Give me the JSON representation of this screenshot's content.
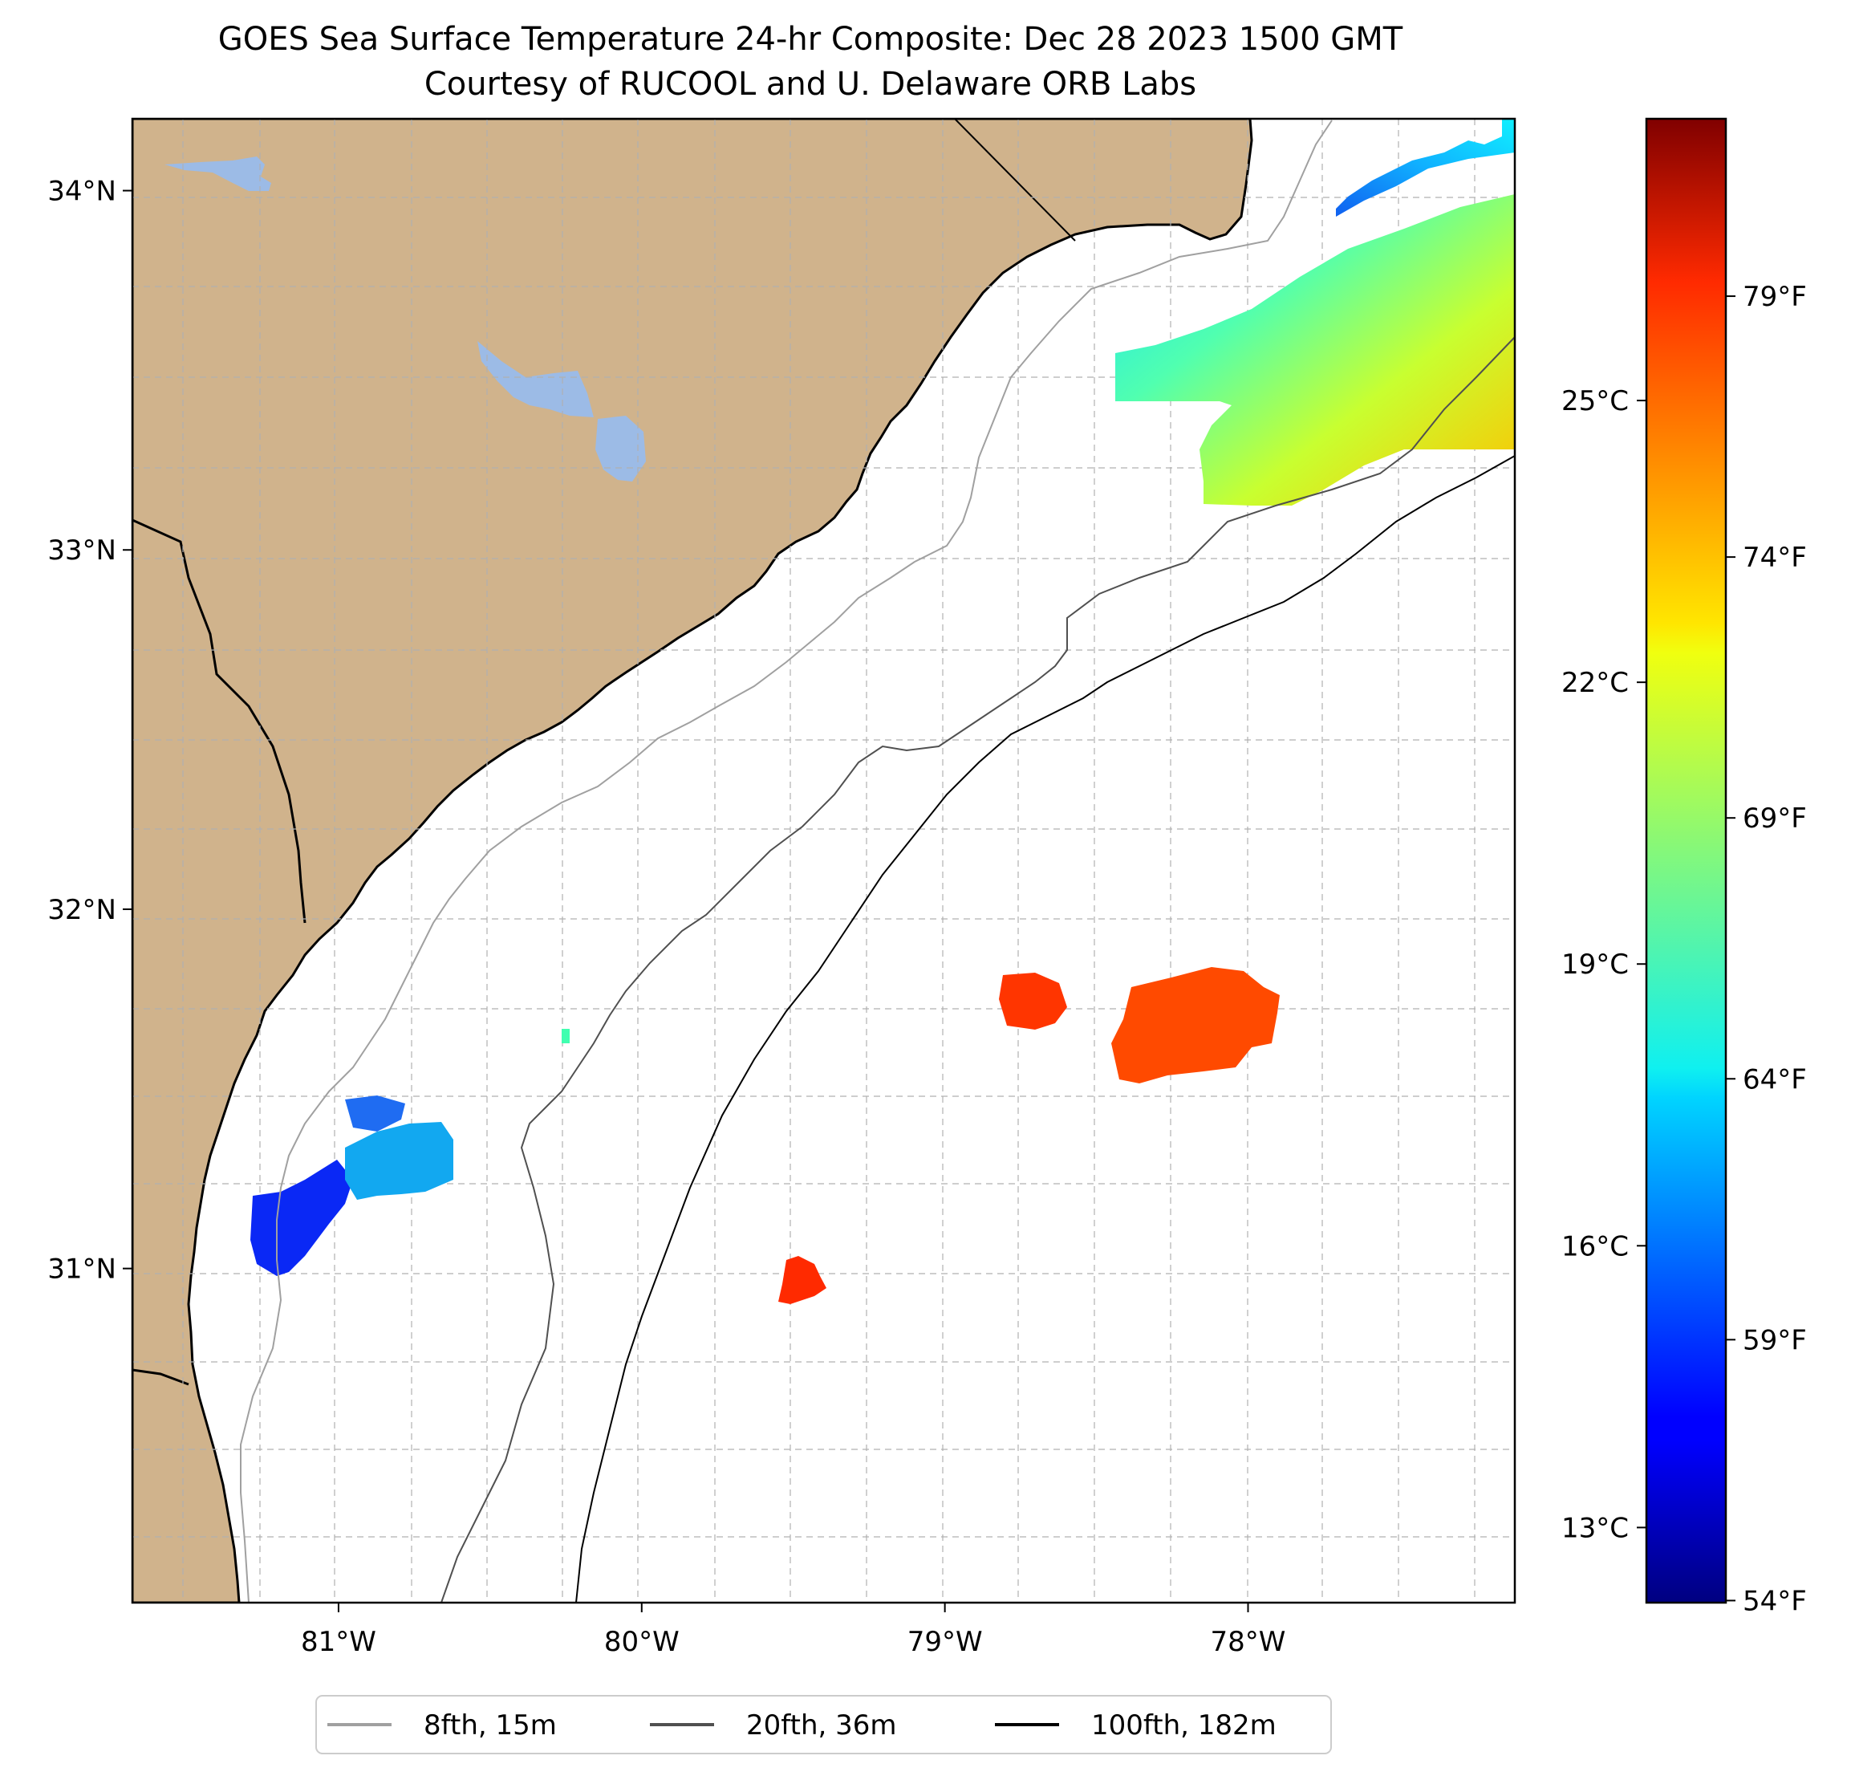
{
  "title": {
    "line1": "GOES Sea Surface Temperature 24-hr Composite: Dec 28 2023 1500 GMT",
    "line2": "Courtesy of RUCOOL and U. Delaware ORB Labs"
  },
  "map": {
    "lon_range": [
      -81.68,
      -77.12
    ],
    "lat_range": [
      30.07,
      34.2
    ],
    "gridlines": true,
    "land_color": "#d0b38c",
    "water_color": "#ffffff",
    "lake_color": "#9cbbe6",
    "x_ticks": [
      {
        "value": -81,
        "label": "81°W"
      },
      {
        "value": -80,
        "label": "80°W"
      },
      {
        "value": -79,
        "label": "79°W"
      },
      {
        "value": -78,
        "label": "78°W"
      }
    ],
    "y_ticks": [
      {
        "value": 34,
        "label": "34°N"
      },
      {
        "value": 33,
        "label": "33°N"
      },
      {
        "value": 32,
        "label": "32°N"
      },
      {
        "value": 31,
        "label": "31°N"
      }
    ]
  },
  "sst_patches": [
    {
      "name": "ne-warm",
      "lon": -77.5,
      "lat": 33.4,
      "color_c": 22.5
    },
    {
      "name": "ne-cool",
      "lon": -77.6,
      "lat": 33.85,
      "color_c": 17.0
    },
    {
      "name": "offshore-1",
      "lon": -78.7,
      "lat": 31.78,
      "color_c": 26.5
    },
    {
      "name": "offshore-2",
      "lon": -78.15,
      "lat": 31.68,
      "color_c": 26.2
    },
    {
      "name": "south-offshore",
      "lon": -79.47,
      "lat": 30.97,
      "color_c": 27.0
    },
    {
      "name": "nearshore-south",
      "lon": -80.95,
      "lat": 31.25,
      "color_c": 15.0
    },
    {
      "name": "nearshore-south-b",
      "lon": -80.75,
      "lat": 31.33,
      "color_c": 17.5
    }
  ],
  "colorbar": {
    "colormap": "jet",
    "vmin_c": 12.2,
    "vmax_c": 28.0,
    "celsius_ticks": [
      {
        "value": 13,
        "label": "13°C"
      },
      {
        "value": 16,
        "label": "16°C"
      },
      {
        "value": 19,
        "label": "19°C"
      },
      {
        "value": 22,
        "label": "22°C"
      },
      {
        "value": 25,
        "label": "25°C"
      }
    ],
    "fahrenheit_ticks": [
      {
        "value": 54,
        "label": "54°F"
      },
      {
        "value": 59,
        "label": "59°F"
      },
      {
        "value": 64,
        "label": "64°F"
      },
      {
        "value": 69,
        "label": "69°F"
      },
      {
        "value": 74,
        "label": "74°F"
      },
      {
        "value": 79,
        "label": "79°F"
      }
    ]
  },
  "legend": {
    "placement": "bottom-center",
    "items": [
      {
        "label": "8fth, 15m",
        "color": "#a0a0a0"
      },
      {
        "label": "20fth, 36m",
        "color": "#505050"
      },
      {
        "label": "100fth, 182m",
        "color": "#000000"
      }
    ]
  }
}
